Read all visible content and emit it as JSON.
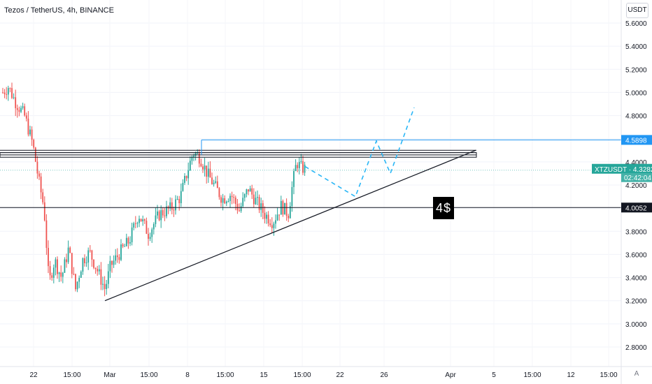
{
  "header": {
    "title": "Tezos / TetherUS, 4h, BINANCE",
    "currency": "USDT",
    "auto_label": "A"
  },
  "chart_data": {
    "type": "candlestick",
    "title": "Tezos / TetherUS, 4h, BINANCE",
    "symbol": "XTZUSDT",
    "timeframe": "4h",
    "exchange": "BINANCE",
    "y_axis": {
      "min": 2.7,
      "max": 5.7,
      "ticks": [
        "5.6000",
        "5.4000",
        "5.2000",
        "5.0000",
        "4.8000",
        "4.6000",
        "4.4000",
        "4.2000",
        "4.0000",
        "3.8000",
        "3.6000",
        "3.4000",
        "3.2000",
        "3.0000",
        "2.8000"
      ],
      "tick_values": [
        5.6,
        5.4,
        5.2,
        5.0,
        4.8,
        4.6,
        4.4,
        4.2,
        4.0,
        3.8,
        3.6,
        3.4,
        3.2,
        3.0,
        2.8
      ]
    },
    "x_axis": {
      "ticks": [
        "22",
        "15:00",
        "Mar",
        "15:00",
        "8",
        "15:00",
        "15",
        "15:00",
        "22",
        "26",
        "Apr",
        "5",
        "15:00",
        "12",
        "15:00"
      ]
    },
    "price_labels": [
      {
        "label": "4.5898",
        "value": 4.5898,
        "color": "#2196f3",
        "kind": "horizontal-line"
      },
      {
        "label": "XTZUSDT · 4.3282",
        "value": 4.3282,
        "countdown": "02:42:04",
        "color": "#26a69a",
        "kind": "last-price"
      },
      {
        "label": "4.0052",
        "value": 4.0052,
        "color": "#131722",
        "kind": "horizontal-line"
      }
    ],
    "drawings": {
      "resistance_lines": [
        4.5,
        4.48,
        4.46
      ],
      "resistance_box": {
        "top": 4.48,
        "bottom": 4.44
      },
      "blue_line": 4.5898,
      "support_line": 4.0052,
      "trendline": {
        "from": {
          "x": "Feb 28",
          "y": 3.2
        },
        "to": {
          "x": "Apr 2",
          "y": 4.5
        }
      },
      "projection": [
        4.36,
        4.1,
        4.58,
        4.3,
        4.87
      ]
    },
    "annotation": "4$",
    "colors": {
      "up": "#26a69a",
      "down": "#ef5350",
      "blue": "#2196f3",
      "projection": "#29b6f6"
    }
  }
}
